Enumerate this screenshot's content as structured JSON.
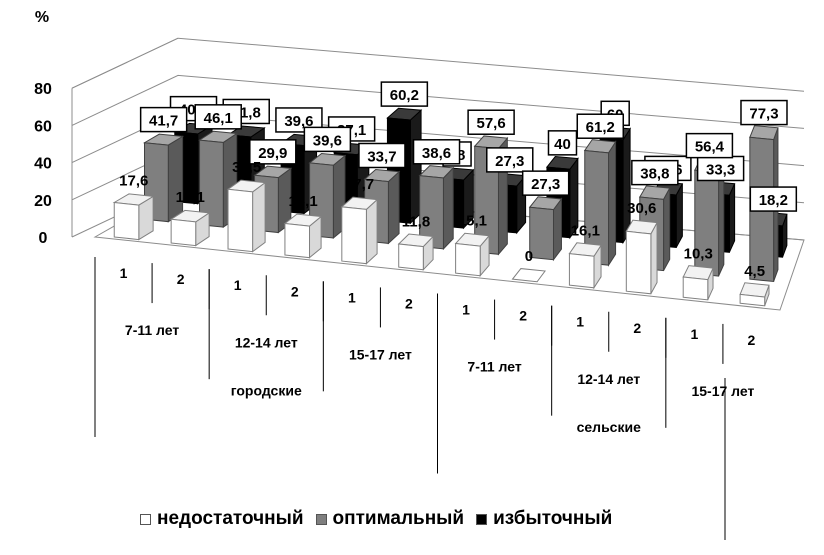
{
  "chart_data": {
    "type": "bar",
    "ylabel": "%",
    "ylim": [
      0,
      80
    ],
    "yticks": [
      "0",
      "20",
      "40",
      "60",
      "80"
    ],
    "grid": true,
    "legend_position": "bottom",
    "groups": [
      {
        "area": "городские",
        "age": "7-11 лет",
        "subs": [
          "1",
          "2"
        ]
      },
      {
        "area": "городские",
        "age": "12-14 лет",
        "subs": [
          "1",
          "2"
        ]
      },
      {
        "area": "городские",
        "age": "15-17 лет",
        "subs": [
          "1",
          "2"
        ]
      },
      {
        "area": "сельские",
        "age": "7-11 лет",
        "subs": [
          "1",
          "2"
        ]
      },
      {
        "area": "сельские",
        "age": "12-14 лет",
        "subs": [
          "1",
          "2"
        ]
      },
      {
        "area": "сельские",
        "age": "15-17 лет",
        "subs": [
          "1",
          "2"
        ]
      }
    ],
    "area_labels": [
      "городские",
      "сельские"
    ],
    "categories": [
      "1",
      "2",
      "1",
      "2",
      "1",
      "2",
      "1",
      "2",
      "1",
      "2",
      "1",
      "2"
    ],
    "series": [
      {
        "name": "недостаточный",
        "color": "#ffffff",
        "values": [
          17.6,
          12.1,
          30.5,
          16.1,
          27.7,
          11.8,
          15.1,
          0,
          16.1,
          30.6,
          10.3,
          4.5
        ],
        "labels": [
          "17,6",
          "12,1",
          "30,5",
          "16,1",
          "27,7",
          "11,8",
          "15,1",
          "0",
          "16,1",
          "30,6",
          "10,3",
          "4,5"
        ]
      },
      {
        "name": "оптимальный",
        "color": "#7f7f7f",
        "values": [
          41.7,
          46.1,
          29.9,
          39.6,
          33.7,
          38.6,
          57.6,
          27.3,
          61.2,
          38.8,
          56.4,
          77.3
        ],
        "labels": [
          "41,7",
          "46,1",
          "29,9",
          "39,6",
          "33,7",
          "38,6",
          "57,6",
          "27,3",
          "61,2",
          "38,8",
          "56,4",
          "77,3"
        ]
      },
      {
        "name": "избыточный",
        "color": "#000000",
        "values": [
          40.7,
          41.8,
          39.6,
          37.1,
          60.2,
          28,
          27.3,
          40,
          60,
          30.6,
          33.3,
          18.2
        ],
        "labels": [
          "40,7",
          "41,8",
          "39,6",
          "37,1",
          "60,2",
          "28",
          "27,3",
          "40",
          "60",
          "30,6",
          "33,3",
          "18,2"
        ]
      }
    ]
  }
}
